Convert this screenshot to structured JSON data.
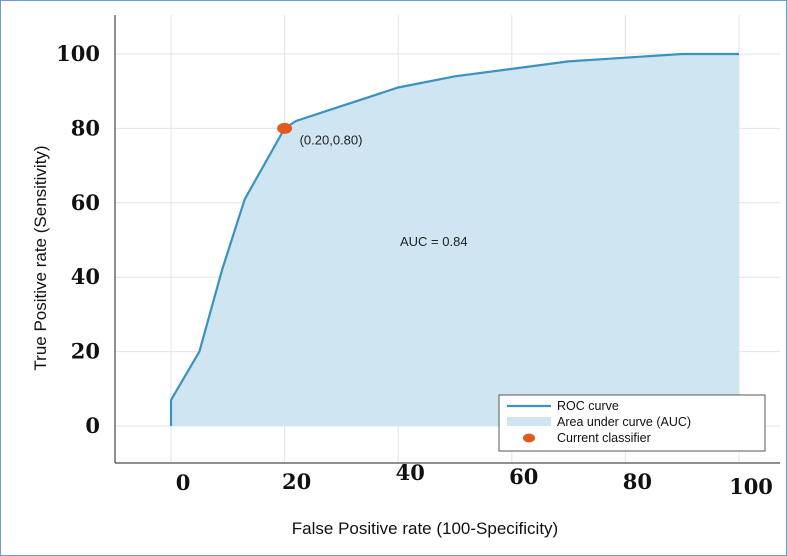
{
  "chart_data": {
    "type": "area",
    "title": "",
    "xlabel": "False Positive rate (100-Specificity)",
    "ylabel": "True Positive rate (Sensitivity)",
    "xlim": [
      -10,
      110
    ],
    "ylim": [
      -10,
      110
    ],
    "x_ticks": [
      "0",
      "20",
      "40",
      "60",
      "80",
      "100"
    ],
    "y_ticks": [
      "0",
      "20",
      "40",
      "60",
      "80",
      "100"
    ],
    "grid": true,
    "legend_position": "bottom-right",
    "series": [
      {
        "name": "ROC curve",
        "kind": "line",
        "color": "#3a92c0",
        "points": [
          [
            0,
            0
          ],
          [
            0,
            7
          ],
          [
            5,
            20
          ],
          [
            9,
            42
          ],
          [
            13,
            61
          ],
          [
            20,
            80
          ],
          [
            22,
            82
          ],
          [
            30,
            86
          ],
          [
            40,
            91
          ],
          [
            50,
            94
          ],
          [
            60,
            96
          ],
          [
            70,
            98
          ],
          [
            80,
            99
          ],
          [
            90,
            100
          ],
          [
            100,
            100
          ]
        ]
      },
      {
        "name": "Area under curve (AUC)",
        "kind": "area",
        "color": "#cfe5f2"
      },
      {
        "name": "Current classifier",
        "kind": "point",
        "color": "#e05a1e",
        "points": [
          [
            20,
            80
          ]
        ]
      }
    ],
    "annotations": {
      "point_label": "(0.20,0.80)",
      "auc_label": "AUC = 0.84"
    }
  }
}
